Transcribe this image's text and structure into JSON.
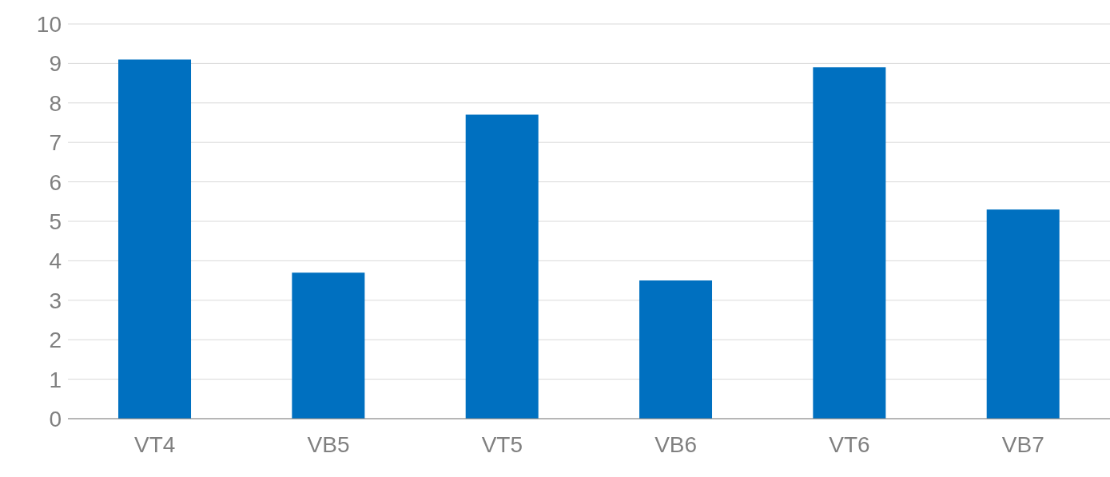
{
  "chart_data": {
    "type": "bar",
    "categories": [
      "VT4",
      "VB5",
      "VT5",
      "VB6",
      "VT6",
      "VB7"
    ],
    "values": [
      9.1,
      3.7,
      7.7,
      3.5,
      8.9,
      5.3
    ],
    "color": "#0070c0",
    "ylim": [
      0,
      10
    ],
    "yticks": [
      0,
      1,
      2,
      3,
      4,
      5,
      6,
      7,
      8,
      9,
      10
    ],
    "grid": "y",
    "legend": false
  }
}
